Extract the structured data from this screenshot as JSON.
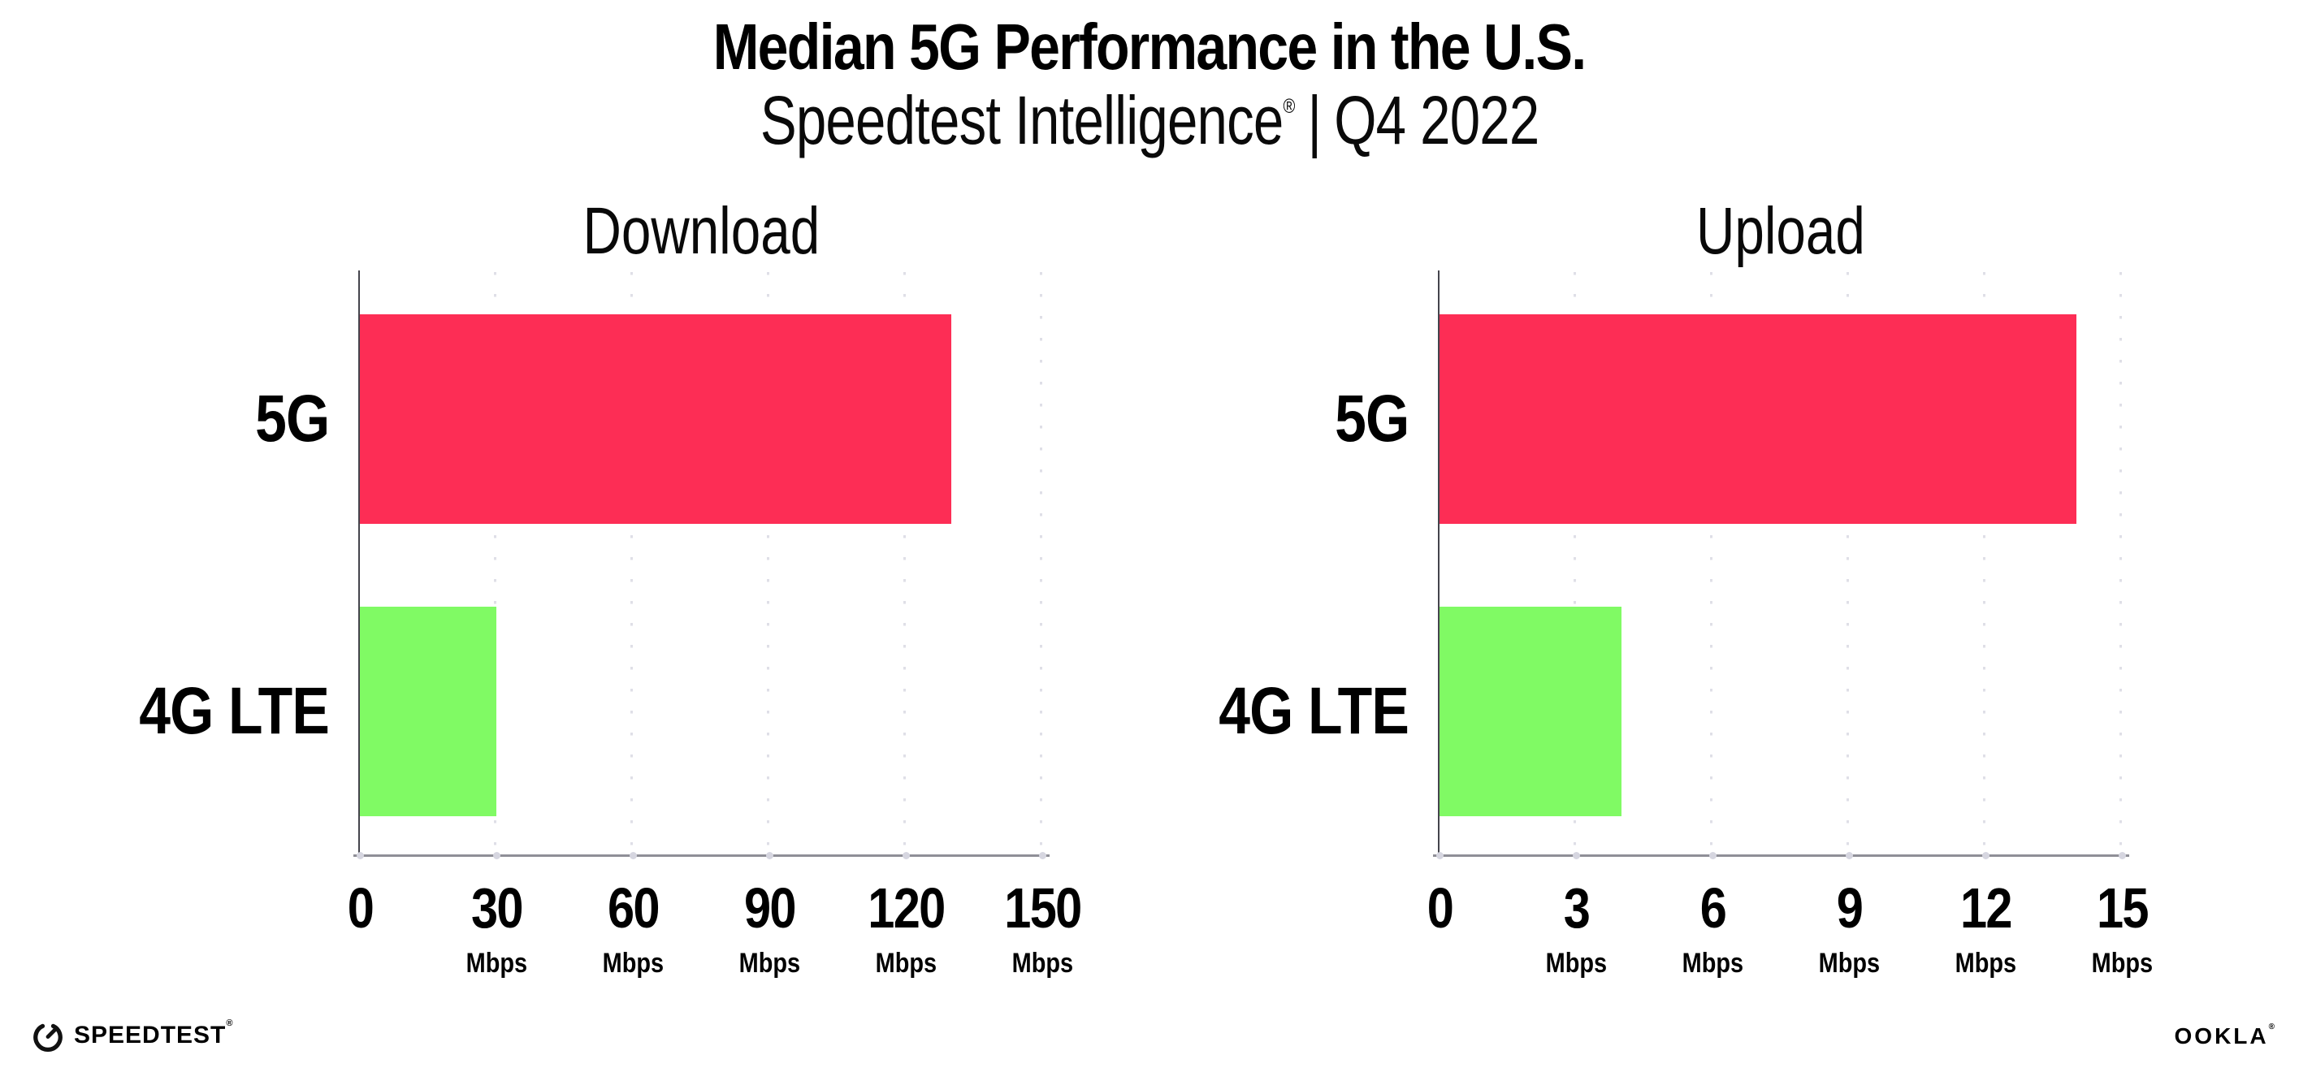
{
  "header": {
    "title": "Median 5G Performance in the U.S.",
    "subtitle_brand": "Speedtest Intelligence",
    "subtitle_reg": "®",
    "subtitle_separator": "|",
    "subtitle_period": "Q4 2022"
  },
  "chart_data": [
    {
      "type": "bar",
      "orientation": "horizontal",
      "title": "Download",
      "categories": [
        "5G",
        "4G LTE"
      ],
      "values": [
        130,
        30
      ],
      "unit": "Mbps",
      "xlim": [
        0,
        150
      ],
      "xticks": [
        0,
        30,
        60,
        90,
        120,
        150
      ],
      "bar_colors": [
        "#FD2D55",
        "#80FA64"
      ],
      "grid": "vertical-dotted",
      "legend": "none",
      "xlabel": "",
      "ylabel": ""
    },
    {
      "type": "bar",
      "orientation": "horizontal",
      "title": "Upload",
      "categories": [
        "5G",
        "4G LTE"
      ],
      "values": [
        14,
        4
      ],
      "unit": "Mbps",
      "xlim": [
        0,
        15
      ],
      "xticks": [
        0,
        3,
        6,
        9,
        12,
        15
      ],
      "bar_colors": [
        "#FD2D55",
        "#80FA64"
      ],
      "grid": "vertical-dotted",
      "legend": "none",
      "xlabel": "",
      "ylabel": ""
    }
  ],
  "colors": {
    "bar_5g": "#FD2D55",
    "bar_4g_lte": "#80FA64",
    "axis_line": "#44444c",
    "baseline": "#8f8f97",
    "gridline_dots": "#dfdfe7",
    "baseline_dots": "#d6d6e0",
    "text": "#000000",
    "background": "#ffffff"
  },
  "footer": {
    "speedtest_label": "SPEEDTEST",
    "speedtest_reg": "®",
    "ookla_label": "OOKLA",
    "ookla_reg": "®"
  }
}
